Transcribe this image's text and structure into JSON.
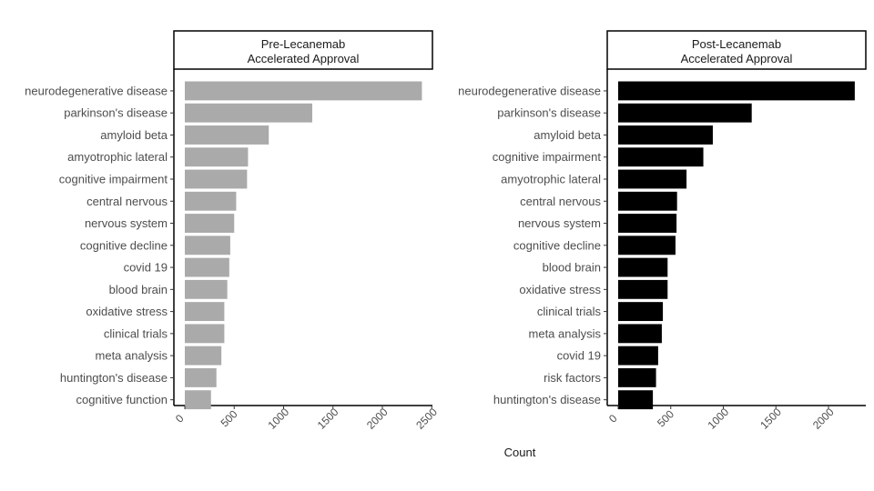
{
  "chart_data": {
    "type": "bar",
    "orientation": "horizontal",
    "xlabel": "Count",
    "ylabel": "",
    "xlim": [
      0,
      2500
    ],
    "grid": false,
    "legend": "none",
    "panels": [
      {
        "title_line1": "Pre-Lecanemab",
        "title_line2": "Accelerated Approval",
        "bar_color": "#aaaaaa",
        "categories": [
          "neurodegenerative disease",
          "parkinson's disease",
          "amyloid beta",
          "amyotrophic lateral",
          "cognitive impairment",
          "central nervous",
          "nervous system",
          "cognitive decline",
          "covid 19",
          "blood brain",
          "oxidative stress",
          "clinical trials",
          "meta analysis",
          "huntington's disease",
          "cognitive function"
        ],
        "values": [
          2400,
          1290,
          850,
          640,
          630,
          520,
          500,
          460,
          450,
          430,
          400,
          400,
          370,
          320,
          265
        ],
        "ticks": [
          0,
          500,
          1000,
          1500,
          2000,
          2500
        ],
        "tick_labels": [
          "0",
          "500",
          "1000",
          "1500",
          "2000",
          "2500"
        ]
      },
      {
        "title_line1": "Post-Lecanemab",
        "title_line2": "Accelerated Approval",
        "bar_color": "#000000",
        "categories": [
          "neurodegenerative disease",
          "parkinson's disease",
          "amyloid beta",
          "cognitive impairment",
          "amyotrophic lateral",
          "central nervous",
          "nervous system",
          "cognitive decline",
          "blood brain",
          "oxidative stress",
          "clinical trials",
          "meta analysis",
          "covid 19",
          "risk factors",
          "huntington's disease"
        ],
        "values": [
          2250,
          1270,
          900,
          810,
          650,
          560,
          555,
          545,
          470,
          470,
          425,
          415,
          380,
          360,
          330
        ],
        "ticks": [
          0,
          500,
          1000,
          1500,
          2000
        ],
        "tick_labels": [
          "0",
          "500",
          "1000",
          "1500",
          "2000"
        ]
      }
    ]
  }
}
